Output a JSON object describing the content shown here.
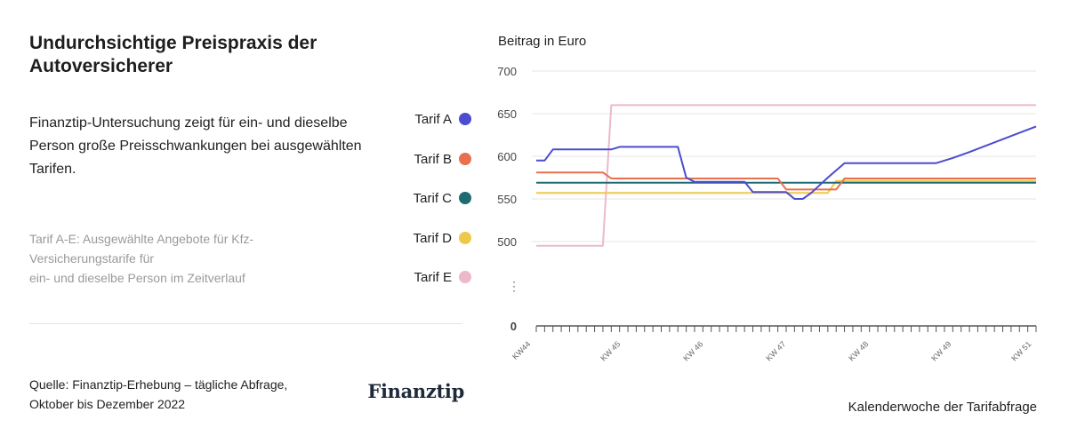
{
  "title": "Undurchsichtige Preispraxis der Autoversicherer",
  "subtitle": "Finanztip-Untersuchung zeigt für ein- und dieselbe Person große Preisschwankungen bei ausgewählten Tarifen.",
  "note_lines": [
    "Tarif A-E: Ausgewählte Angebote für Kfz-",
    "Versicherungstarife für",
    "ein- und dieselbe Person im Zeitverlauf"
  ],
  "source_lines": [
    "Quelle: Finanztip-Erhebung – tägliche Abfrage,",
    "Oktober bis Dezember 2022"
  ],
  "brand": "Finanztip",
  "chart_data": {
    "type": "line",
    "ylabel": "Beitrag in Euro",
    "xlabel": "Kalenderwoche der Tarifabfrage",
    "y_ticks": [
      0,
      500,
      550,
      600,
      650,
      700
    ],
    "y_axis_break": "⋮",
    "x_tick_labels": [
      "KW44",
      "KW 45",
      "KW 46",
      "KW 47",
      "KW 48",
      "KW 49",
      "KW 51"
    ],
    "x_domain_days": [
      0,
      60
    ],
    "grid": true,
    "legend_position": "left",
    "series": [
      {
        "name": "Tarif A",
        "color": "#4b4ccf",
        "points": [
          [
            0,
            595
          ],
          [
            1,
            595
          ],
          [
            2,
            608
          ],
          [
            9,
            608
          ],
          [
            10,
            611
          ],
          [
            17,
            611
          ],
          [
            18,
            575
          ],
          [
            19,
            570
          ],
          [
            25,
            570
          ],
          [
            26,
            558
          ],
          [
            30,
            558
          ],
          [
            31,
            550
          ],
          [
            32,
            550
          ],
          [
            33,
            557
          ],
          [
            35,
            575
          ],
          [
            37,
            592
          ],
          [
            48,
            592
          ],
          [
            50,
            598
          ],
          [
            52,
            605
          ],
          [
            60,
            635
          ]
        ]
      },
      {
        "name": "Tarif B",
        "color": "#e8704e",
        "points": [
          [
            0,
            581
          ],
          [
            8,
            581
          ],
          [
            9,
            574
          ],
          [
            29,
            574
          ],
          [
            30,
            561
          ],
          [
            36,
            561
          ],
          [
            37,
            574
          ],
          [
            60,
            574
          ]
        ]
      },
      {
        "name": "Tarif C",
        "color": "#1f6b73",
        "points": [
          [
            0,
            569
          ],
          [
            60,
            569
          ]
        ]
      },
      {
        "name": "Tarif D",
        "color": "#efc84a",
        "points": [
          [
            0,
            557
          ],
          [
            35,
            557
          ],
          [
            36,
            571
          ],
          [
            60,
            571
          ]
        ]
      },
      {
        "name": "Tarif E",
        "color": "#ecb9c9",
        "points": [
          [
            0,
            495
          ],
          [
            8,
            495
          ],
          [
            9,
            660
          ],
          [
            60,
            660
          ]
        ]
      }
    ]
  }
}
